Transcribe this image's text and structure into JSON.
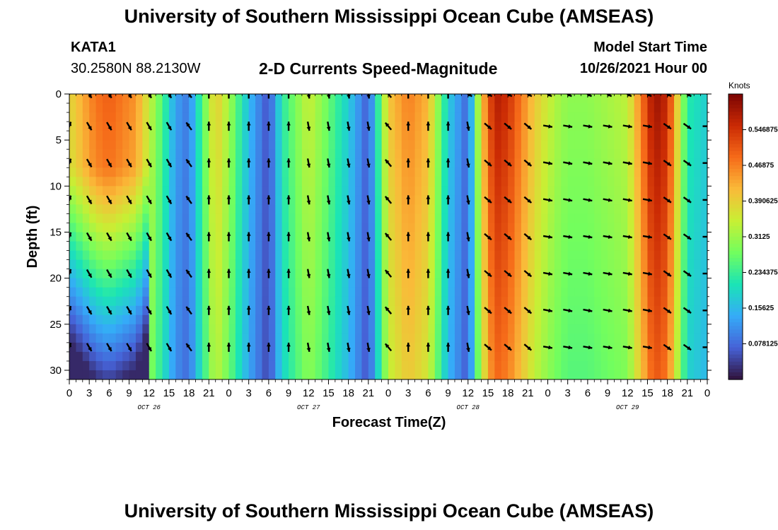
{
  "header": {
    "title": "University of Southern Mississippi Ocean Cube (AMSEAS)",
    "station": "KATA1",
    "coords": "30.2580N  88.2130W",
    "subtitle": "2-D Currents Speed-Magnitude",
    "model_start_label": "Model Start Time",
    "model_start_value": "10/26/2021 Hour 00"
  },
  "footer": {
    "title": "University of Southern Mississippi Ocean Cube (AMSEAS)"
  },
  "chart_data": {
    "type": "heatmap",
    "title": "2-D Currents Speed-Magnitude",
    "xlabel": "Forecast Time(Z)",
    "ylabel": "Depth (ft)",
    "xlim": [
      0,
      96
    ],
    "ylim": [
      0,
      31
    ],
    "x_ticks": [
      0,
      3,
      6,
      9,
      12,
      15,
      18,
      21,
      24,
      27,
      30,
      33,
      36,
      39,
      42,
      45,
      48,
      51,
      54,
      57,
      60,
      63,
      66,
      69,
      72,
      75,
      78,
      81,
      84,
      87,
      90,
      93,
      96
    ],
    "x_tick_labels": [
      "0",
      "3",
      "6",
      "9",
      "12",
      "15",
      "18",
      "21",
      "0",
      "3",
      "6",
      "9",
      "12",
      "15",
      "18",
      "21",
      "0",
      "3",
      "6",
      "9",
      "12",
      "15",
      "18",
      "21",
      "0",
      "3",
      "6",
      "9",
      "12",
      "15",
      "18",
      "21",
      "0"
    ],
    "day_labels": [
      {
        "label": "OCT 26",
        "hour": 12
      },
      {
        "label": "OCT 27",
        "hour": 36
      },
      {
        "label": "OCT 28",
        "hour": 60
      },
      {
        "label": "OCT 29",
        "hour": 84
      }
    ],
    "y_ticks": [
      0,
      5,
      10,
      15,
      20,
      25,
      30
    ],
    "colorbar": {
      "label": "Knots",
      "range": [
        0,
        0.625
      ],
      "ticks": [
        "0.078125",
        "0.15625",
        "0.234375",
        "0.3125",
        "0.390625",
        "0.46875",
        "0.546875"
      ],
      "colormap": [
        "#30123b",
        "#4662d7",
        "#35abf8",
        "#1ae4b6",
        "#72fe5e",
        "#c8ef34",
        "#faba39",
        "#f66b19",
        "#ca2a04",
        "#7a0403"
      ]
    },
    "speed_profile_knots": {
      "hours": [
        0,
        4,
        6,
        10,
        14,
        16,
        18,
        19,
        22,
        24,
        27,
        30,
        32,
        36,
        38,
        42,
        45,
        48,
        51,
        54,
        57,
        60,
        62,
        64,
        66,
        70,
        73,
        75,
        78,
        81,
        84,
        88,
        90,
        93,
        96
      ],
      "values": [
        0.38,
        0.48,
        0.5,
        0.45,
        0.25,
        0.13,
        0.09,
        0.18,
        0.4,
        0.32,
        0.16,
        0.05,
        0.22,
        0.35,
        0.3,
        0.18,
        0.06,
        0.4,
        0.47,
        0.42,
        0.18,
        0.07,
        0.4,
        0.58,
        0.55,
        0.4,
        0.33,
        0.3,
        0.3,
        0.32,
        0.34,
        0.6,
        0.56,
        0.22,
        0.18
      ]
    },
    "arrow_hours": [
      0,
      3,
      6,
      9,
      12,
      15,
      18,
      21,
      24,
      27,
      30,
      33,
      36,
      39,
      42,
      45,
      48,
      51,
      54,
      57,
      60,
      63,
      66,
      69,
      72,
      75,
      78,
      81,
      84,
      87,
      90,
      93,
      96
    ],
    "arrow_depths_ft": [
      0,
      3.5,
      7.5,
      11.5,
      15.5,
      19.5,
      23.5,
      27.5
    ]
  }
}
